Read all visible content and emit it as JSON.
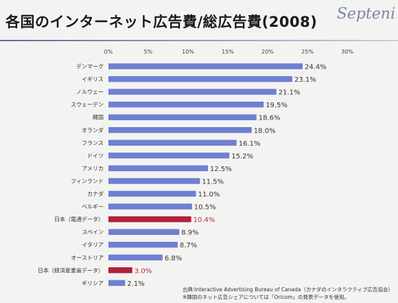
{
  "header": {
    "title": "各国のインターネット広告費/総広告費(2008)",
    "logo_text": "Septeni"
  },
  "chart_data": {
    "type": "bar",
    "orientation": "horizontal",
    "title": "各国のインターネット広告費/総広告費(2008)",
    "xlim": [
      0,
      30
    ],
    "ticks": [
      "0%",
      "5%",
      "10%",
      "15%",
      "20%",
      "25%",
      "30%"
    ],
    "tick_values": [
      0,
      5,
      10,
      15,
      20,
      25,
      30
    ],
    "categories": [
      "デンマーク",
      "イギリス",
      "ノルウェー",
      "スウェーデン",
      "韓国",
      "オランダ",
      "フランス",
      "ドイツ",
      "アメリカ",
      "フィンランド",
      "カナダ",
      "ベルギー",
      "日本（電通データ）",
      "スペイン",
      "イタリア",
      "オーストリア",
      "日本（経済産業省データ）",
      "ギリシア"
    ],
    "values": [
      24.4,
      23.1,
      21.1,
      19.5,
      18.6,
      18.0,
      16.1,
      15.2,
      12.5,
      11.5,
      11.0,
      10.5,
      10.4,
      8.9,
      8.7,
      6.8,
      3.0,
      2.1
    ],
    "value_labels": [
      "24.4%",
      "23.1%",
      "21.1%",
      "19.5%",
      "18.6%",
      "18.0%",
      "16.1%",
      "15.2%",
      "12.5%",
      "11.5%",
      "11.0%",
      "10.5%",
      "10.4%",
      "8.9%",
      "8.7%",
      "6.8%",
      "3.0%",
      "2.1%"
    ],
    "highlight": [
      false,
      false,
      false,
      false,
      false,
      false,
      false,
      false,
      false,
      false,
      false,
      false,
      true,
      false,
      false,
      false,
      true,
      false
    ],
    "colors": {
      "bar": "#6f7fd2",
      "highlight_bar": "#b0223a",
      "label": "#333333",
      "highlight_label": "#c0283e"
    },
    "grid": false
  },
  "footer": {
    "source": "出典:Interactive Advertising Bureau of Canada（カナダのインタラクティブ広告協会）",
    "note": "※韓国のネット広告シェアについては「Oricom」の発表データを使用。"
  }
}
